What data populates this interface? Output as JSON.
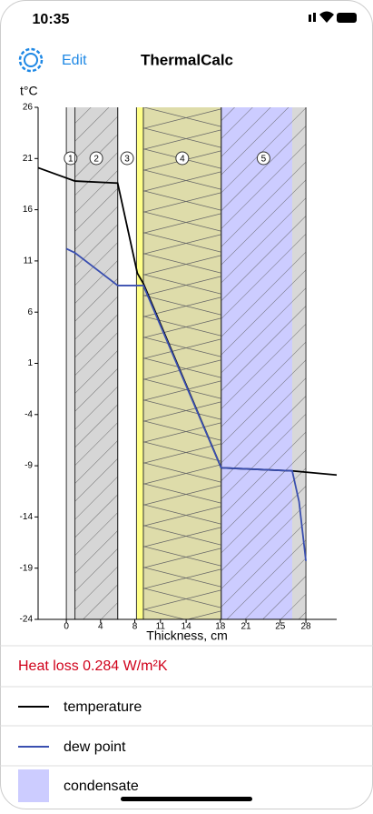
{
  "status_bar": {
    "time": "10:35"
  },
  "nav_bar": {
    "edit": "Edit",
    "title": "ThermalCalc"
  },
  "chart_data": {
    "type": "line",
    "y_label": "t°C",
    "x_label": "Thickness, cm",
    "xlim": [
      -3.3,
      31.6
    ],
    "ylim": [
      -24,
      26
    ],
    "xticks": [
      0,
      4,
      8,
      11,
      14,
      18,
      21,
      25,
      28
    ],
    "yticks": [
      26,
      21,
      16,
      11,
      6,
      1,
      -4,
      -9,
      -14,
      -19,
      -24
    ],
    "layers": [
      {
        "label": "1",
        "start": 0,
        "end": 1,
        "color": "#e4e4e4",
        "pattern": "none"
      },
      {
        "label": "2",
        "start": 1,
        "end": 6,
        "color": "#d6d6d6",
        "pattern": "hatch"
      },
      {
        "label": "3",
        "start": 6,
        "end": 8.2,
        "color": "#ffffff",
        "pattern": "none"
      },
      {
        "label": "4",
        "start": 9,
        "end": 18.1,
        "color": "#dedcaa",
        "pattern": "zigzag"
      },
      {
        "label": "5",
        "start": 18.1,
        "end": 28,
        "color": "#d8d8d8",
        "pattern": "hatch"
      }
    ],
    "highlight": {
      "start": 8.2,
      "end": 9,
      "color": "#ffff88"
    },
    "condensate": {
      "name": "condensate",
      "start": 18.1,
      "end": 26.4,
      "color": "#ccccff"
    },
    "series": [
      {
        "name": "temperature",
        "color": "#000000",
        "x": [
          -3.3,
          1,
          6,
          8.3,
          9,
          18.1,
          26.4,
          31.6
        ],
        "values": [
          20.1,
          18.8,
          18.6,
          9.8,
          8.8,
          -9.2,
          -9.5,
          -9.9
        ]
      },
      {
        "name": "dew point",
        "color": "#3a4fb0",
        "x": [
          0,
          1,
          6,
          9,
          18.1,
          26.4,
          27.2,
          28
        ],
        "values": [
          12.2,
          11.8,
          8.6,
          8.6,
          -9.2,
          -9.5,
          -12.5,
          -18.3
        ]
      }
    ]
  },
  "heat_loss": "Heat loss 0.284 W/m²K"
}
